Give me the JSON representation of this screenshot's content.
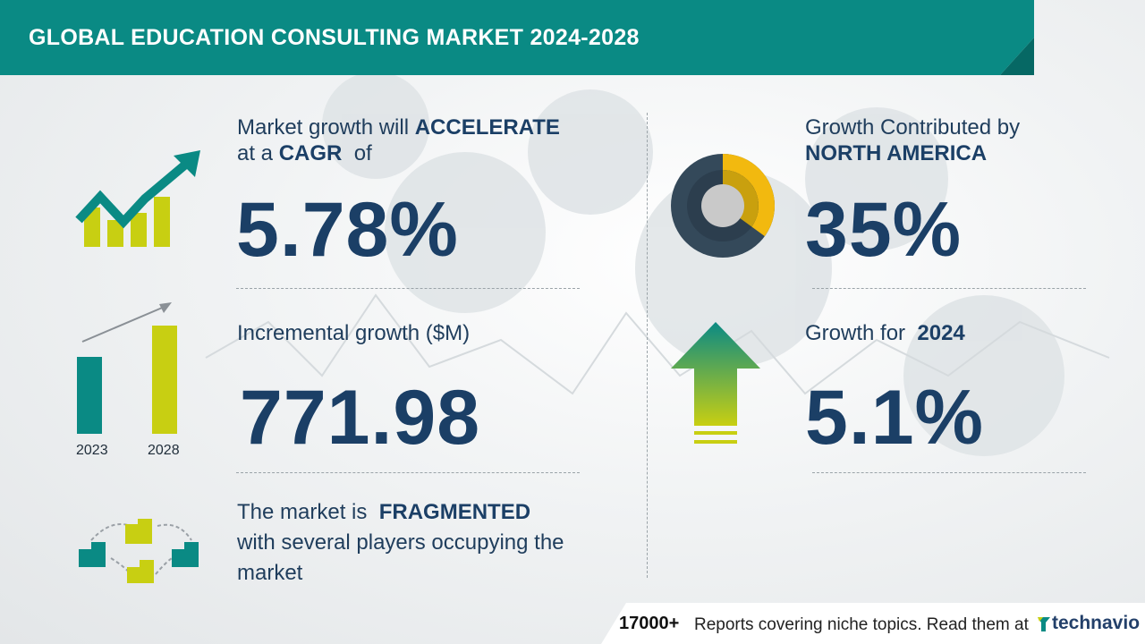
{
  "header": {
    "title": "GLOBAL EDUCATION CONSULTING MARKET 2024-2028"
  },
  "cagr": {
    "line1_prefix": "Market growth will",
    "line1_strong": "ACCELERATE",
    "line2_prefix": "at a",
    "line2_strong": "CAGR",
    "line2_suffix": "of",
    "value": "5.78%"
  },
  "incremental": {
    "label": "Incremental growth ($M)",
    "value": "771.98",
    "bar_year_start": "2023",
    "bar_year_end": "2028"
  },
  "market": {
    "line1_prefix": "The market is",
    "line1_strong": "FRAGMENTED",
    "line2": "with several players occupying the",
    "line3": "market"
  },
  "region": {
    "label": "Growth Contributed by",
    "name": "NORTH AMERICA",
    "value": "35%",
    "share_fraction": 0.35
  },
  "yoy": {
    "label_prefix": "Growth for",
    "year": "2024",
    "value": "5.1%"
  },
  "footer": {
    "count": "17000+",
    "text": "Reports covering niche topics. Read them at",
    "brand": "technavio"
  },
  "colors": {
    "teal": "#0a8a84",
    "yellow_green": "#c8cf12",
    "navy": "#1b3f66",
    "donut_dark": "#34495a",
    "donut_gold": "#f2b90f"
  },
  "icons": {
    "growth": "trend-up-arrow-icon",
    "bars": "bar-compare-icon",
    "buildings": "buildings-network-icon",
    "donut": "donut-share-icon",
    "arrow": "up-arrow-icon",
    "brand_logo": "technavio-logo-icon"
  }
}
